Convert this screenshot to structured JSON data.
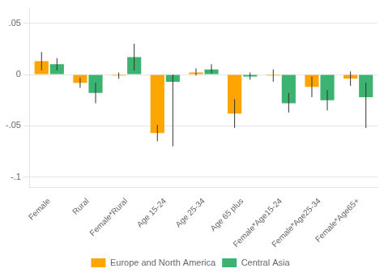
{
  "chart_data": {
    "type": "bar",
    "categories": [
      "Female",
      "Rural",
      "Female*Rural",
      "Age 15-24",
      "Age 25-34",
      "Age 65 plus",
      "Female*Age15-24",
      "Female*Age25-34",
      "Female*Age65+"
    ],
    "series": [
      {
        "name": "Europe and North America",
        "color": "#FFA500",
        "values": [
          0.013,
          -0.008,
          -0.001,
          -0.057,
          0.002,
          -0.038,
          -0.001,
          -0.012,
          -0.004
        ],
        "ci_lower": [
          0.004,
          -0.013,
          -0.004,
          -0.065,
          -0.001,
          -0.052,
          -0.007,
          -0.022,
          -0.011
        ],
        "ci_upper": [
          0.022,
          -0.003,
          0.002,
          -0.049,
          0.006,
          -0.024,
          0.005,
          -0.002,
          0.003
        ]
      },
      {
        "name": "Central Asia",
        "color": "#3CB371",
        "values": [
          0.01,
          -0.018,
          0.017,
          -0.007,
          0.005,
          -0.002,
          -0.028,
          -0.025,
          -0.022
        ],
        "ci_lower": [
          0.004,
          -0.028,
          0.004,
          -0.07,
          0.001,
          -0.005,
          -0.037,
          -0.035,
          -0.052
        ],
        "ci_upper": [
          0.016,
          -0.008,
          0.03,
          0.0,
          0.01,
          0.002,
          -0.018,
          -0.015,
          -0.008
        ]
      }
    ],
    "ylim": [
      -0.11,
      0.065
    ],
    "yticks": [
      {
        "value": -0.1,
        "label": "-.1"
      },
      {
        "value": -0.05,
        "label": "-.05"
      },
      0,
      {
        "value": 0.05,
        "label": ".05"
      }
    ],
    "grid": true,
    "legend": "bottom"
  }
}
